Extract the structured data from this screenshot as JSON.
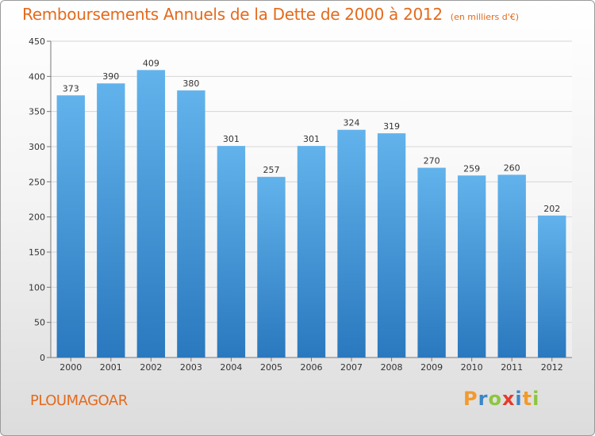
{
  "header": {
    "title": "Remboursements Annuels de la Dette de 2000 à 2012",
    "subtitle": "(en milliers d'€)"
  },
  "footer": {
    "commune": "PLOUMAGOAR",
    "logo_text": "Proxiti"
  },
  "colors": {
    "bar_top": "#62b3ec",
    "bar_bottom": "#2a78be",
    "title": "#e46a1c",
    "logo_letters": [
      "#f29a2e",
      "#3b86c8",
      "#8cc63f",
      "#e53b2c",
      "#3b86c8",
      "#f29a2e",
      "#8cc63f"
    ]
  },
  "chart_data": {
    "type": "bar",
    "title": "Remboursements Annuels de la Dette de 2000 à 2012",
    "subtitle": "(en milliers d'€)",
    "categories": [
      "2000",
      "2001",
      "2002",
      "2003",
      "2004",
      "2005",
      "2006",
      "2007",
      "2008",
      "2009",
      "2010",
      "2011",
      "2012"
    ],
    "values": [
      373,
      390,
      409,
      380,
      301,
      257,
      301,
      324,
      319,
      270,
      259,
      260,
      202
    ],
    "xlabel": "",
    "ylabel": "",
    "ylim": [
      0,
      450
    ],
    "yticks": [
      0,
      50,
      100,
      150,
      200,
      250,
      300,
      350,
      400,
      450
    ],
    "grid": true,
    "data_labels": true
  }
}
